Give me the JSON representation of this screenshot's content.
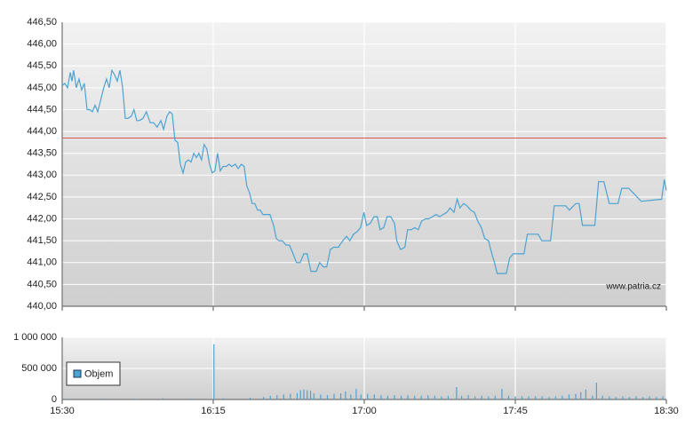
{
  "chart_data": [
    {
      "type": "line",
      "x": [
        0,
        0.8,
        1.6,
        2.4,
        2.9,
        3.4,
        4.2,
        5,
        5.8,
        6.6,
        7.4,
        8.2,
        9,
        9.8,
        10.6,
        11.4,
        12.4,
        13.2,
        14,
        14.8,
        15.6,
        16.4,
        17.2,
        18,
        18.8,
        19.6,
        20.6,
        21.4,
        22.2,
        23,
        24.1,
        25.1,
        26.2,
        27.2,
        28.3,
        29.4,
        30.2,
        31.2,
        32,
        32.8,
        33.6,
        34.4,
        35.2,
        36,
        36.8,
        37.6,
        38.4,
        39.2,
        40,
        40.7,
        41.5,
        42.3,
        43.1,
        43.9,
        44.7,
        45.5,
        46.3,
        47.1,
        47.9,
        48.9,
        49.7,
        50.5,
        51.6,
        52.4,
        53.4,
        54.2,
        55,
        55.8,
        56.6,
        57.4,
        58.2,
        59,
        59.8,
        60.8,
        61.9,
        63,
        63.8,
        64.6,
        65.6,
        66.7,
        67.7,
        68.8,
        69.8,
        70.9,
        72,
        73,
        74.1,
        75.7,
        76.7,
        77.8,
        78.8,
        79.9,
        80.9,
        82.3,
        83.6,
        84.7,
        85.7,
        86.8,
        87.8,
        88.9,
        89.9,
        90.7,
        91.8,
        92.9,
        93.9,
        94.7,
        95.8,
        96.8,
        97.9,
        99,
        99.7,
        100.8,
        102.1,
        102.9,
        104,
        105,
        106.1,
        107.1,
        108.2,
        109.2,
        110.3,
        111.4,
        112.4,
        113.5,
        114.6,
        115.6,
        116.7,
        117.7,
        118.5,
        119.6,
        120.6,
        121.7,
        122.8,
        123.8,
        124.9,
        125.9,
        127,
        128,
        128.8,
        129.6,
        131.2,
        132.3,
        133.3,
        134.4,
        137.6,
        138.6,
        141.8,
        142.9,
        145.5,
        146.6,
        150,
        151.1,
        153,
        154,
        155,
        158.7,
        159.8,
        161.4,
        163,
        165.6,
        166.7,
        168.8,
        172.5,
        178.6,
        179.4,
        180
      ],
      "values": [
        445.05,
        445.1,
        445.0,
        445.35,
        445.15,
        445.4,
        445.0,
        445.2,
        444.95,
        445.1,
        444.5,
        444.5,
        444.45,
        444.6,
        444.45,
        444.7,
        445.0,
        445.2,
        445.0,
        445.4,
        445.3,
        445.15,
        445.4,
        445.0,
        444.3,
        444.3,
        444.35,
        444.5,
        444.25,
        444.25,
        444.3,
        444.45,
        444.2,
        444.2,
        444.1,
        444.25,
        444.05,
        444.35,
        444.45,
        444.4,
        443.8,
        443.75,
        443.25,
        443.05,
        443.3,
        443.35,
        443.3,
        443.5,
        443.4,
        443.5,
        443.35,
        443.7,
        443.6,
        443.25,
        443.05,
        443.1,
        443.5,
        443.1,
        443.2,
        443.2,
        443.25,
        443.2,
        443.25,
        443.15,
        443.25,
        443.2,
        442.75,
        442.6,
        442.35,
        442.35,
        442.2,
        442.2,
        442.1,
        442.1,
        442.1,
        441.85,
        441.55,
        441.5,
        441.5,
        441.4,
        441.4,
        441.2,
        441.0,
        441.0,
        441.2,
        441.2,
        440.8,
        440.8,
        441.0,
        440.9,
        440.9,
        441.3,
        441.35,
        441.35,
        441.5,
        441.6,
        441.5,
        441.65,
        441.7,
        441.8,
        442.15,
        441.85,
        441.9,
        442.05,
        442.05,
        441.75,
        441.8,
        442.05,
        442.05,
        441.9,
        441.5,
        441.3,
        441.35,
        441.75,
        441.75,
        441.8,
        441.75,
        441.95,
        442.0,
        442.0,
        442.05,
        442.1,
        442.05,
        442.1,
        442.15,
        442.25,
        442.15,
        442.45,
        442.25,
        442.35,
        442.3,
        442.2,
        442.15,
        441.95,
        441.8,
        441.55,
        441.5,
        441.2,
        441.0,
        440.75,
        440.75,
        440.75,
        441.1,
        441.2,
        441.2,
        441.65,
        441.65,
        441.5,
        441.5,
        442.3,
        442.3,
        442.2,
        442.35,
        442.35,
        441.85,
        441.85,
        442.85,
        442.85,
        442.35,
        442.35,
        442.7,
        442.7,
        442.4,
        442.45,
        442.9,
        442.65
      ],
      "color": "#4ba3d3",
      "xlim": [
        0,
        180
      ],
      "ylim": [
        440,
        446.5
      ],
      "yticks": [
        {
          "value": 440,
          "label": "440,00"
        },
        {
          "value": 440.5,
          "label": "440,50"
        },
        {
          "value": 441,
          "label": "441,00"
        },
        {
          "value": 441.5,
          "label": "441,50"
        },
        {
          "value": 442,
          "label": "442,00"
        },
        {
          "value": 442.5,
          "label": "442,50"
        },
        {
          "value": 443,
          "label": "443,00"
        },
        {
          "value": 443.5,
          "label": "443,50"
        },
        {
          "value": 444,
          "label": "444,00"
        },
        {
          "value": 444.5,
          "label": "444,50"
        },
        {
          "value": 445,
          "label": "445,00"
        },
        {
          "value": 445.5,
          "label": "445,50"
        },
        {
          "value": 446,
          "label": "446,00"
        },
        {
          "value": 446.5,
          "label": "446,50"
        }
      ],
      "reference_line": 443.85,
      "reference_color": "#d9534f",
      "grid": true,
      "annotation": "www.patria.cz"
    },
    {
      "type": "bar",
      "x": [
        2,
        12,
        22,
        30,
        38,
        45.2,
        48,
        56,
        60,
        62,
        64,
        66,
        68,
        70,
        71,
        72,
        73,
        74,
        75,
        77,
        79,
        81,
        83,
        84.4,
        86,
        87.6,
        89,
        91,
        93,
        95,
        97,
        99,
        101,
        103,
        105,
        107,
        109,
        111,
        113,
        115,
        117.5,
        119,
        121,
        123,
        125,
        127,
        129,
        131,
        133,
        135,
        137,
        139,
        141,
        143,
        145,
        147,
        149,
        151,
        153,
        154.5,
        156,
        158,
        159.2,
        161,
        163,
        165,
        167,
        169,
        171,
        173,
        175,
        177,
        179
      ],
      "series": [
        {
          "name": "Objem",
          "color": "#4ba3d3",
          "values": [
            10000,
            15000,
            10000,
            20000,
            15000,
            890000,
            20000,
            30000,
            40000,
            60000,
            70000,
            80000,
            90000,
            100000,
            150000,
            160000,
            150000,
            140000,
            100000,
            80000,
            70000,
            90000,
            100000,
            130000,
            80000,
            170000,
            80000,
            90000,
            80000,
            70000,
            60000,
            70000,
            60000,
            70000,
            60000,
            60000,
            70000,
            60000,
            50000,
            60000,
            200000,
            60000,
            70000,
            50000,
            60000,
            50000,
            60000,
            170000,
            60000,
            50000,
            50000,
            50000,
            50000,
            50000,
            40000,
            50000,
            60000,
            80000,
            90000,
            120000,
            160000,
            60000,
            270000,
            60000,
            50000,
            40000,
            50000,
            40000,
            50000,
            40000,
            50000,
            40000,
            50000
          ]
        }
      ],
      "xlim": [
        0,
        180
      ],
      "ylim": [
        0,
        1000000
      ],
      "yticks": [
        0,
        {
          "value": 500000,
          "label": "500 000"
        },
        {
          "value": 1000000,
          "label": "1 000 000"
        }
      ],
      "xticks": [
        {
          "value": 0,
          "label": "15:30"
        },
        {
          "value": 45,
          "label": "16:15"
        },
        {
          "value": 90,
          "label": "17:00"
        },
        {
          "value": 135,
          "label": "17:45"
        },
        {
          "value": 180,
          "label": "18:30"
        }
      ],
      "grid": true,
      "legend": "lower left"
    }
  ]
}
